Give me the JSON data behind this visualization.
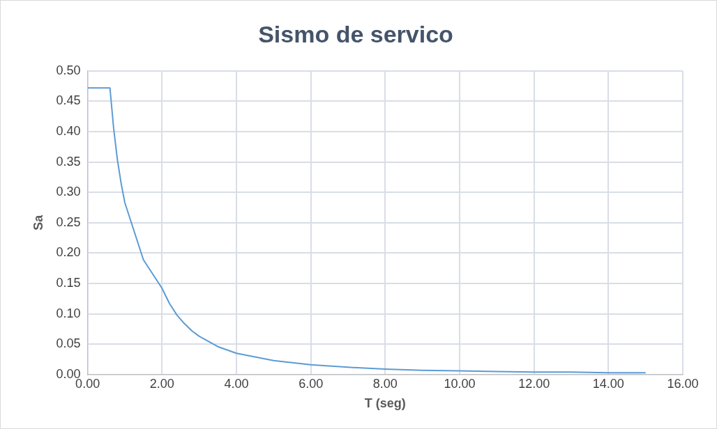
{
  "chart_data": {
    "type": "line",
    "title": "Sismo de servico",
    "xlabel": "T (seg)",
    "ylabel": "Sa",
    "x": [
      0,
      0.6,
      0.7,
      0.8,
      0.9,
      1.0,
      1.5,
      2.0,
      2.2,
      2.4,
      2.6,
      2.8,
      3.0,
      3.5,
      4.0,
      5.0,
      6.0,
      7.0,
      8.0,
      9.0,
      10.0,
      11.0,
      12.0,
      13.0,
      14.0,
      15.0
    ],
    "series": [
      {
        "color": "#5b9bd5",
        "values": [
          0.472,
          0.472,
          0.405,
          0.354,
          0.315,
          0.283,
          0.189,
          0.142,
          0.117,
          0.098,
          0.084,
          0.072,
          0.063,
          0.046,
          0.035,
          0.023,
          0.016,
          0.012,
          0.009,
          0.007,
          0.006,
          0.005,
          0.004,
          0.004,
          0.003,
          0.003
        ]
      }
    ],
    "xlim": [
      0,
      16
    ],
    "xticks": [
      {
        "value": 0,
        "label": "0.00"
      },
      {
        "value": 2,
        "label": "2.00"
      },
      {
        "value": 4,
        "label": "4.00"
      },
      {
        "value": 6,
        "label": "6.00"
      },
      {
        "value": 8,
        "label": "8.00"
      },
      {
        "value": 10,
        "label": "10.00"
      },
      {
        "value": 12,
        "label": "12.00"
      },
      {
        "value": 14,
        "label": "14.00"
      },
      {
        "value": 16,
        "label": "16.00"
      }
    ],
    "ylim": [
      0,
      0.5
    ],
    "yticks": [
      {
        "value": 0,
        "label": "0.00"
      },
      {
        "value": 0.05,
        "label": "0.05"
      },
      {
        "value": 0.1,
        "label": "0.10"
      },
      {
        "value": 0.15,
        "label": "0.15"
      },
      {
        "value": 0.2,
        "label": "0.20"
      },
      {
        "value": 0.25,
        "label": "0.25"
      },
      {
        "value": 0.3,
        "label": "0.30"
      },
      {
        "value": 0.35,
        "label": "0.35"
      },
      {
        "value": 0.4,
        "label": "0.40"
      },
      {
        "value": 0.45,
        "label": "0.45"
      },
      {
        "value": 0.5,
        "label": "0.50"
      }
    ],
    "grid": true,
    "marker": "none",
    "line_style": "solid",
    "legend": false
  }
}
